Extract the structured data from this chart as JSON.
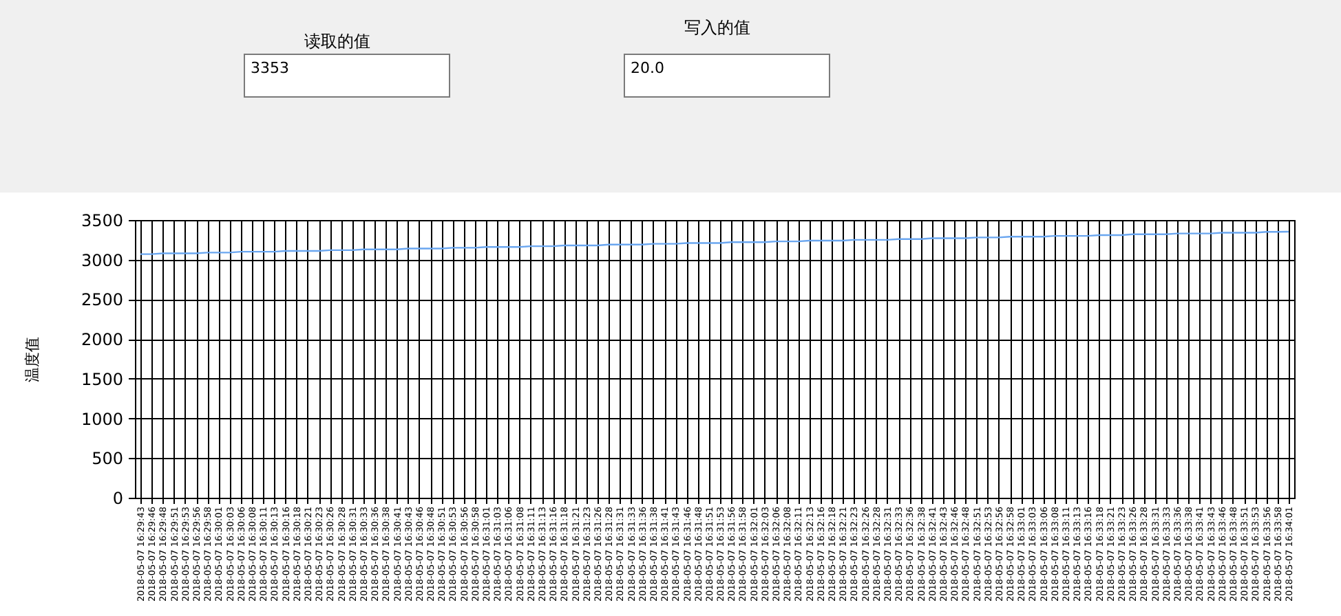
{
  "chart_data": {
    "type": "line",
    "ylabel": "温度值",
    "annotations": [
      "读取的值",
      "3353",
      "写入的值",
      "20.0"
    ],
    "categories": [
      "2018-05-07 16:29:43",
      "2018-05-07 16:29:46",
      "2018-05-07 16:29:48",
      "2018-05-07 16:29:51",
      "2018-05-07 16:29:53",
      "2018-05-07 16:29:56",
      "2018-05-07 16:29:58",
      "2018-05-07 16:30:01",
      "2018-05-07 16:30:03",
      "2018-05-07 16:30:06",
      "2018-05-07 16:30:08",
      "2018-05-07 16:30:11",
      "2018-05-07 16:30:13",
      "2018-05-07 16:30:16",
      "2018-05-07 16:30:18",
      "2018-05-07 16:30:21",
      "2018-05-07 16:30:23",
      "2018-05-07 16:30:26",
      "2018-05-07 16:30:28",
      "2018-05-07 16:30:31",
      "2018-05-07 16:30:33",
      "2018-05-07 16:30:36",
      "2018-05-07 16:30:38",
      "2018-05-07 16:30:41",
      "2018-05-07 16:30:43",
      "2018-05-07 16:30:46",
      "2018-05-07 16:30:48",
      "2018-05-07 16:30:51",
      "2018-05-07 16:30:53",
      "2018-05-07 16:30:56",
      "2018-05-07 16:30:58",
      "2018-05-07 16:31:01",
      "2018-05-07 16:31:03",
      "2018-05-07 16:31:06",
      "2018-05-07 16:31:08",
      "2018-05-07 16:31:11",
      "2018-05-07 16:31:13",
      "2018-05-07 16:31:16",
      "2018-05-07 16:31:18",
      "2018-05-07 16:31:21",
      "2018-05-07 16:31:23",
      "2018-05-07 16:31:26",
      "2018-05-07 16:31:28",
      "2018-05-07 16:31:31",
      "2018-05-07 16:31:33",
      "2018-05-07 16:31:36",
      "2018-05-07 16:31:38",
      "2018-05-07 16:31:41",
      "2018-05-07 16:31:43",
      "2018-05-07 16:31:46",
      "2018-05-07 16:31:48",
      "2018-05-07 16:31:51",
      "2018-05-07 16:31:53",
      "2018-05-07 16:31:56",
      "2018-05-07 16:31:58",
      "2018-05-07 16:32:01",
      "2018-05-07 16:32:03",
      "2018-05-07 16:32:06",
      "2018-05-07 16:32:08",
      "2018-05-07 16:32:11",
      "2018-05-07 16:32:13",
      "2018-05-07 16:32:16",
      "2018-05-07 16:32:18",
      "2018-05-07 16:32:21",
      "2018-05-07 16:32:23",
      "2018-05-07 16:32:26",
      "2018-05-07 16:32:28",
      "2018-05-07 16:32:31",
      "2018-05-07 16:32:33",
      "2018-05-07 16:32:36",
      "2018-05-07 16:32:38",
      "2018-05-07 16:32:41",
      "2018-05-07 16:32:43",
      "2018-05-07 16:32:46",
      "2018-05-07 16:32:48",
      "2018-05-07 16:32:51",
      "2018-05-07 16:32:53",
      "2018-05-07 16:32:56",
      "2018-05-07 16:32:58",
      "2018-05-07 16:33:01",
      "2018-05-07 16:33:03",
      "2018-05-07 16:33:06",
      "2018-05-07 16:33:08",
      "2018-05-07 16:33:11",
      "2018-05-07 16:33:13",
      "2018-05-07 16:33:16",
      "2018-05-07 16:33:18",
      "2018-05-07 16:33:21",
      "2018-05-07 16:33:23",
      "2018-05-07 16:33:26",
      "2018-05-07 16:33:28",
      "2018-05-07 16:33:31",
      "2018-05-07 16:33:33",
      "2018-05-07 16:33:36",
      "2018-05-07 16:33:38",
      "2018-05-07 16:33:41",
      "2018-05-07 16:33:43",
      "2018-05-07 16:33:46",
      "2018-05-07 16:33:48",
      "2018-05-07 16:33:51",
      "2018-05-07 16:33:53",
      "2018-05-07 16:33:56",
      "2018-05-07 16:33:58",
      "2018-05-07 16:34:01"
    ],
    "series": [
      {
        "color": "#6aa6f0",
        "values": [
          3070,
          3070,
          3080,
          3080,
          3080,
          3080,
          3090,
          3090,
          3090,
          3100,
          3100,
          3100,
          3100,
          3110,
          3110,
          3110,
          3110,
          3120,
          3120,
          3120,
          3130,
          3130,
          3130,
          3130,
          3140,
          3140,
          3140,
          3140,
          3150,
          3150,
          3150,
          3160,
          3160,
          3160,
          3160,
          3170,
          3170,
          3170,
          3180,
          3180,
          3180,
          3180,
          3190,
          3190,
          3190,
          3190,
          3200,
          3200,
          3200,
          3210,
          3210,
          3210,
          3210,
          3220,
          3220,
          3220,
          3220,
          3230,
          3230,
          3230,
          3240,
          3240,
          3240,
          3240,
          3250,
          3250,
          3250,
          3250,
          3260,
          3260,
          3260,
          3270,
          3270,
          3270,
          3270,
          3280,
          3280,
          3280,
          3290,
          3290,
          3290,
          3290,
          3300,
          3300,
          3300,
          3300,
          3310,
          3310,
          3310,
          3320,
          3320,
          3320,
          3320,
          3330,
          3330,
          3330,
          3330,
          3340,
          3340,
          3340,
          3340,
          3350,
          3350,
          3353
        ]
      }
    ],
    "ylim": [
      0,
      3500
    ],
    "yticks": [
      0,
      500,
      1000,
      1500,
      2000,
      2500,
      3000,
      3500
    ],
    "grid": true,
    "legend": false,
    "marker": "none",
    "line_style": "solid"
  }
}
